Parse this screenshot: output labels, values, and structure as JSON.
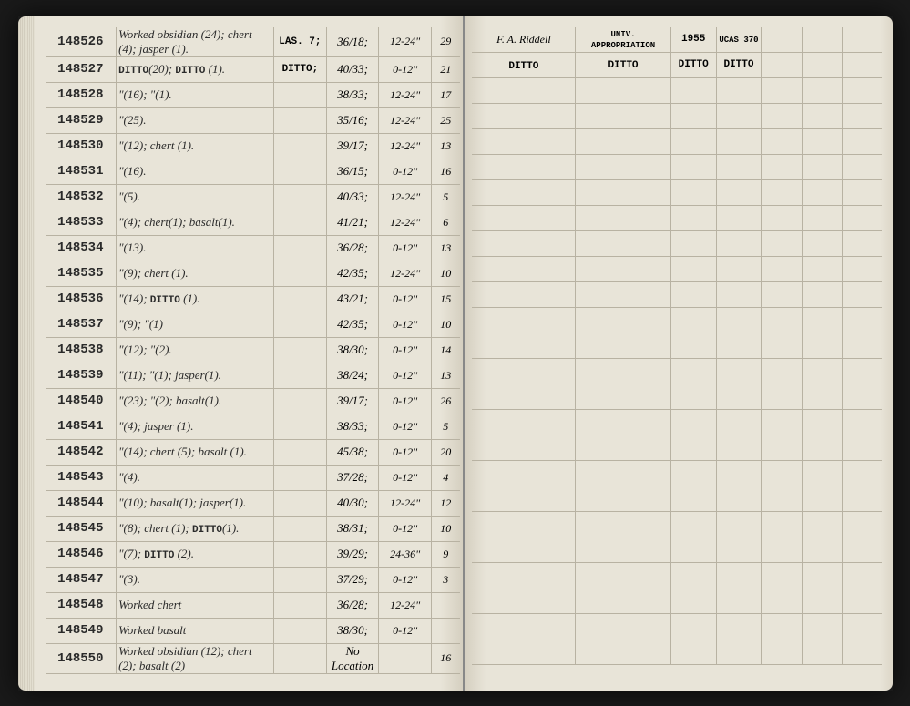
{
  "colors": {
    "page_bg": "#e8e4d8",
    "line": "#b8b2a2",
    "ink": "#2a2a2a",
    "outer_bg": "#1a1a1a"
  },
  "header_right": {
    "collector": "F. A. Riddell",
    "appropriation": "UNIV. APPROPRIATION",
    "year": "1955",
    "site_code": "UCAS",
    "site_no": "370"
  },
  "rows": [
    {
      "id": "148526",
      "desc": "Worked obsidian (24); chert (4); jasper (1).",
      "site": "LAS. 7;",
      "loc": "36/18;",
      "depth": "12-24\"",
      "ct": "29",
      "r1": "F. A. Riddell",
      "r2": "UNIV. APPROPRIATION",
      "r3": "1955",
      "r4": "UCAS 370"
    },
    {
      "id": "148527",
      "desc": "DITTO(20); DITTO (1).",
      "site": "DITTO;",
      "loc": "40/33;",
      "depth": "0-12\"",
      "ct": "21",
      "r1": "DITTO",
      "r2": "DITTO",
      "r3": "DITTO",
      "r4": "DITTO"
    },
    {
      "id": "148528",
      "desc": "\"(16); \"(1).",
      "site": "",
      "loc": "38/33;",
      "depth": "12-24\"",
      "ct": "17",
      "r1": "",
      "r2": "",
      "r3": "",
      "r4": ""
    },
    {
      "id": "148529",
      "desc": "\"(25).",
      "site": "",
      "loc": "35/16;",
      "depth": "12-24\"",
      "ct": "25",
      "r1": "",
      "r2": "",
      "r3": "",
      "r4": ""
    },
    {
      "id": "148530",
      "desc": "\"(12); chert (1).",
      "site": "",
      "loc": "39/17;",
      "depth": "12-24\"",
      "ct": "13",
      "r1": "",
      "r2": "",
      "r3": "",
      "r4": ""
    },
    {
      "id": "148531",
      "desc": "\"(16).",
      "site": "",
      "loc": "36/15;",
      "depth": "0-12\"",
      "ct": "16",
      "r1": "",
      "r2": "",
      "r3": "",
      "r4": ""
    },
    {
      "id": "148532",
      "desc": "\"(5).",
      "site": "",
      "loc": "40/33;",
      "depth": "12-24\"",
      "ct": "5",
      "r1": "",
      "r2": "",
      "r3": "",
      "r4": ""
    },
    {
      "id": "148533",
      "desc": "\"(4); chert(1); basalt(1).",
      "site": "",
      "loc": "41/21;",
      "depth": "12-24\"",
      "ct": "6",
      "r1": "",
      "r2": "",
      "r3": "",
      "r4": ""
    },
    {
      "id": "148534",
      "desc": "\"(13).",
      "site": "",
      "loc": "36/28;",
      "depth": "0-12\"",
      "ct": "13",
      "r1": "",
      "r2": "",
      "r3": "",
      "r4": ""
    },
    {
      "id": "148535",
      "desc": "\"(9); chert (1).",
      "site": "",
      "loc": "42/35;",
      "depth": "12-24\"",
      "ct": "10",
      "r1": "",
      "r2": "",
      "r3": "",
      "r4": ""
    },
    {
      "id": "148536",
      "desc": "\"(14); DITTO (1).",
      "site": "",
      "loc": "43/21;",
      "depth": "0-12\"",
      "ct": "15",
      "r1": "",
      "r2": "",
      "r3": "",
      "r4": ""
    },
    {
      "id": "148537",
      "desc": "\"(9); \"(1)",
      "site": "",
      "loc": "42/35;",
      "depth": "0-12\"",
      "ct": "10",
      "r1": "",
      "r2": "",
      "r3": "",
      "r4": ""
    },
    {
      "id": "148538",
      "desc": "\"(12); \"(2).",
      "site": "",
      "loc": "38/30;",
      "depth": "0-12\"",
      "ct": "14",
      "r1": "",
      "r2": "",
      "r3": "",
      "r4": ""
    },
    {
      "id": "148539",
      "desc": "\"(11); \"(1); jasper(1).",
      "site": "",
      "loc": "38/24;",
      "depth": "0-12\"",
      "ct": "13",
      "r1": "",
      "r2": "",
      "r3": "",
      "r4": ""
    },
    {
      "id": "148540",
      "desc": "\"(23); \"(2); basalt(1).",
      "site": "",
      "loc": "39/17;",
      "depth": "0-12\"",
      "ct": "26",
      "r1": "",
      "r2": "",
      "r3": "",
      "r4": ""
    },
    {
      "id": "148541",
      "desc": "\"(4); jasper (1).",
      "site": "",
      "loc": "38/33;",
      "depth": "0-12\"",
      "ct": "5",
      "r1": "",
      "r2": "",
      "r3": "",
      "r4": ""
    },
    {
      "id": "148542",
      "desc": "\"(14); chert (5); basalt (1).",
      "site": "",
      "loc": "45/38;",
      "depth": "0-12\"",
      "ct": "20",
      "r1": "",
      "r2": "",
      "r3": "",
      "r4": ""
    },
    {
      "id": "148543",
      "desc": "\"(4).",
      "site": "",
      "loc": "37/28;",
      "depth": "0-12\"",
      "ct": "4",
      "r1": "",
      "r2": "",
      "r3": "",
      "r4": ""
    },
    {
      "id": "148544",
      "desc": "\"(10); basalt(1); jasper(1).",
      "site": "",
      "loc": "40/30;",
      "depth": "12-24\"",
      "ct": "12",
      "r1": "",
      "r2": "",
      "r3": "",
      "r4": ""
    },
    {
      "id": "148545",
      "desc": "\"(8); chert (1); DITTO(1).",
      "site": "",
      "loc": "38/31;",
      "depth": "0-12\"",
      "ct": "10",
      "r1": "",
      "r2": "",
      "r3": "",
      "r4": ""
    },
    {
      "id": "148546",
      "desc": "\"(7); DITTO (2).",
      "site": "",
      "loc": "39/29;",
      "depth": "24-36\"",
      "ct": "9",
      "r1": "",
      "r2": "",
      "r3": "",
      "r4": ""
    },
    {
      "id": "148547",
      "desc": "\"(3).",
      "site": "",
      "loc": "37/29;",
      "depth": "0-12\"",
      "ct": "3",
      "r1": "",
      "r2": "",
      "r3": "",
      "r4": ""
    },
    {
      "id": "148548",
      "desc": "Worked chert",
      "site": "",
      "loc": "36/28;",
      "depth": "12-24\"",
      "ct": "",
      "r1": "",
      "r2": "",
      "r3": "",
      "r4": ""
    },
    {
      "id": "148549",
      "desc": "Worked basalt",
      "site": "",
      "loc": "38/30;",
      "depth": "0-12\"",
      "ct": "",
      "r1": "",
      "r2": "",
      "r3": "",
      "r4": ""
    },
    {
      "id": "148550",
      "desc": "Worked obsidian (12); chert (2); basalt (2)",
      "site": "",
      "loc": "No Location",
      "depth": "",
      "ct": "16",
      "r1": "",
      "r2": "",
      "r3": "",
      "r4": ""
    }
  ]
}
